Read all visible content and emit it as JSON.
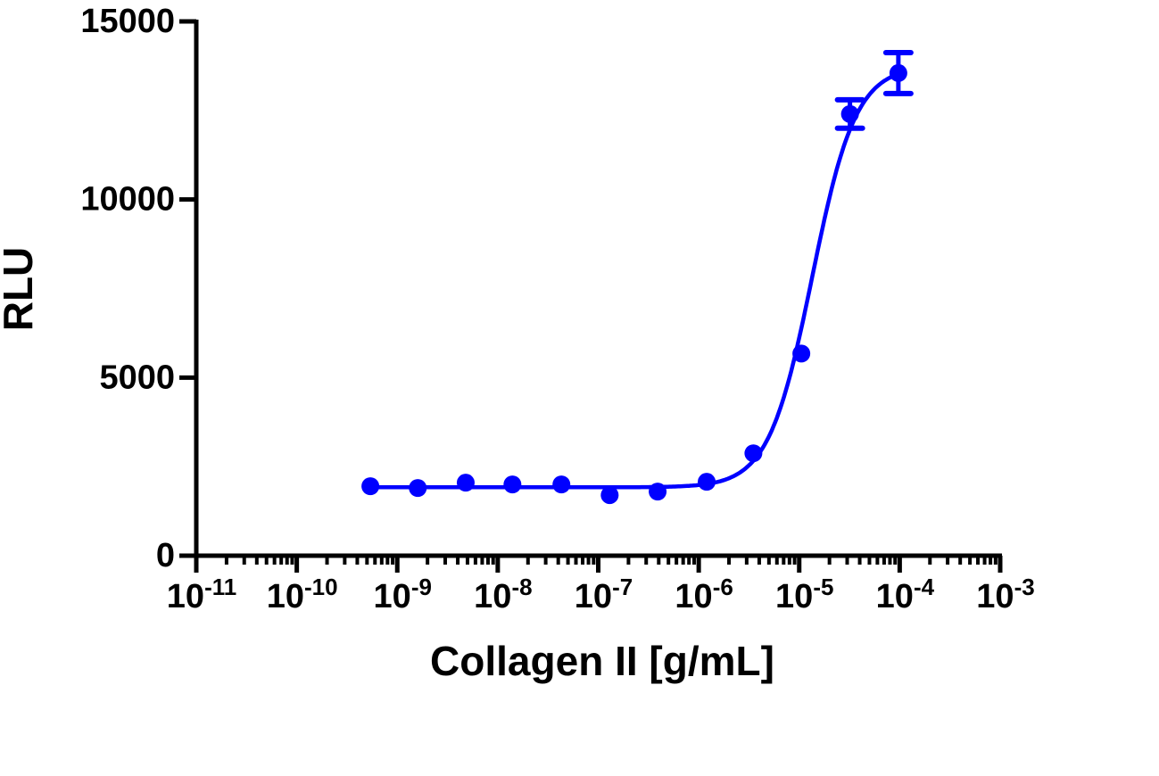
{
  "chart_data": {
    "type": "scatter",
    "title": "",
    "xlabel": "Collagen II [g/mL]",
    "ylabel": "RLU",
    "xscale": "log",
    "xlim": [
      1e-11,
      0.001
    ],
    "ylim": [
      0,
      15000
    ],
    "x_ticks": [
      {
        "base": "10",
        "exp": "-11",
        "value": 1e-11
      },
      {
        "base": "10",
        "exp": "-10",
        "value": 1e-10
      },
      {
        "base": "10",
        "exp": "-9",
        "value": 1e-09
      },
      {
        "base": "10",
        "exp": "-8",
        "value": 1e-08
      },
      {
        "base": "10",
        "exp": "-7",
        "value": 1e-07
      },
      {
        "base": "10",
        "exp": "-6",
        "value": 1e-06
      },
      {
        "base": "10",
        "exp": "-5",
        "value": 1e-05
      },
      {
        "base": "10",
        "exp": "-4",
        "value": 0.0001
      },
      {
        "base": "10",
        "exp": "-3",
        "value": 0.001
      }
    ],
    "y_ticks": [
      "0",
      "5000",
      "10000",
      "15000"
    ],
    "y_tick_values": [
      0,
      5000,
      10000,
      15000
    ],
    "grid": false,
    "legend": null,
    "series": [
      {
        "name": "Collagen II",
        "color": "#0000ff",
        "marker": "circle",
        "x": [
          5.4e-10,
          1.6e-09,
          4.8e-09,
          1.4e-08,
          4.3e-08,
          1.3e-07,
          3.9e-07,
          1.2e-06,
          3.5e-06,
          1.05e-05,
          3.2e-05,
          9.7e-05
        ],
        "y": [
          1950,
          1900,
          2050,
          2000,
          2000,
          1700,
          1800,
          2075,
          2875,
          5675,
          12400,
          13550
        ],
        "error": [
          0,
          0,
          0,
          0,
          0,
          0,
          0,
          0,
          0,
          0,
          400,
          575
        ]
      }
    ],
    "fit": {
      "type": "4PL sigmoidal dose-response",
      "bottom": 1920,
      "top": 13750,
      "log_ec50": -4.87,
      "hill_slope": 2.0,
      "x_range": [
        5.4e-10,
        9.7e-05
      ],
      "color": "#0000ff"
    }
  }
}
